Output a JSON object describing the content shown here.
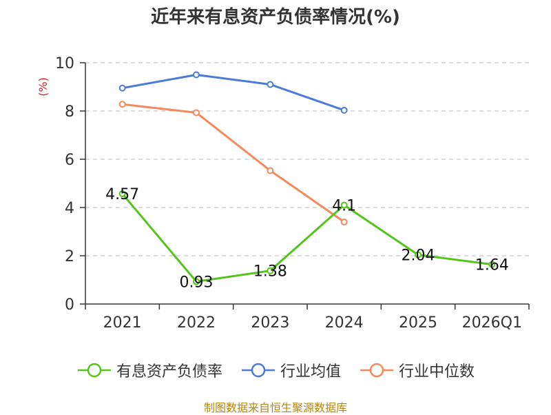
{
  "chart_data": {
    "type": "line",
    "title": "近年来有息资产负债率情况(%)",
    "ylabel": "(%)",
    "xlabel": "",
    "ylim": [
      0,
      10
    ],
    "yticks": [
      0,
      2,
      4,
      6,
      8,
      10
    ],
    "categories": [
      "2021",
      "2022",
      "2023",
      "2024",
      "2025",
      "2026Q1"
    ],
    "series": [
      {
        "name": "有息资产负债率",
        "color": "#52c41a",
        "values": [
          4.57,
          0.93,
          1.38,
          4.1,
          2.04,
          1.64
        ],
        "labels": [
          "4.57",
          "0.93",
          "1.38",
          "4.1",
          "2.04",
          "1.64"
        ]
      },
      {
        "name": "行业均值",
        "color": "#4a7bdc",
        "values": [
          8.95,
          9.5,
          9.1,
          8.03,
          null,
          null
        ]
      },
      {
        "name": "行业中位数",
        "color": "#f5895a",
        "values": [
          8.28,
          7.93,
          5.53,
          3.4,
          null,
          null
        ]
      }
    ],
    "grid": true,
    "legend": "bottom-center"
  },
  "footer": {
    "source": "制图数据来自恒生聚源数据库"
  }
}
